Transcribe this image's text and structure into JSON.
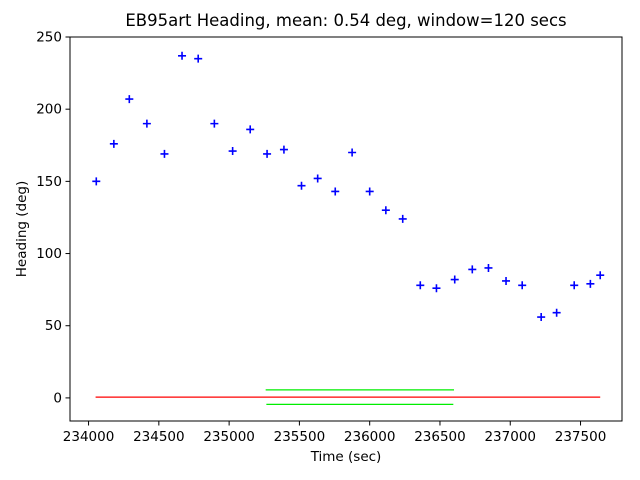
{
  "chart_data": {
    "type": "scatter",
    "title": "EB95art Heading, mean: 0.54 deg, window=120 secs",
    "xlabel": "Time (sec)",
    "ylabel": "Heading (deg)",
    "xlim": [
      233868,
      237795
    ],
    "ylim": [
      -16,
      250
    ],
    "xticks": [
      234000,
      234500,
      235000,
      235500,
      236000,
      236500,
      237000,
      237500
    ],
    "yticks": [
      0,
      50,
      100,
      150,
      200,
      250
    ],
    "grid": false,
    "legend": false,
    "marker": "plus",
    "marker_color": "#0000ff",
    "marker_half_size": 4,
    "marker_stroke_width": 1.6,
    "points": [
      [
        234055,
        150
      ],
      [
        234180,
        176
      ],
      [
        234290,
        207
      ],
      [
        234415,
        190
      ],
      [
        234540,
        169
      ],
      [
        234665,
        237
      ],
      [
        234780,
        235
      ],
      [
        234895,
        190
      ],
      [
        235025,
        171
      ],
      [
        235150,
        186
      ],
      [
        235270,
        169
      ],
      [
        235390,
        172
      ],
      [
        235515,
        147
      ],
      [
        235630,
        152
      ],
      [
        235755,
        143
      ],
      [
        235875,
        170
      ],
      [
        236000,
        143
      ],
      [
        236115,
        130
      ],
      [
        236235,
        124
      ],
      [
        236360,
        78
      ],
      [
        236475,
        76
      ],
      [
        236605,
        82
      ],
      [
        236730,
        89
      ],
      [
        236845,
        90
      ],
      [
        236970,
        81
      ],
      [
        237085,
        78
      ],
      [
        237220,
        56
      ],
      [
        237330,
        59
      ],
      [
        237455,
        78
      ],
      [
        237570,
        79
      ],
      [
        237640,
        85
      ]
    ],
    "lines": [
      {
        "name": "mean-line",
        "color": "#ff0000",
        "y": 0.54,
        "x_start": 234050,
        "x_end": 237640
      },
      {
        "name": "upper-threshold-line",
        "color": "#00ee00",
        "y": 5.54,
        "x_start": 235260,
        "x_end": 236600
      },
      {
        "name": "lower-threshold-line",
        "color": "#00ee00",
        "y": -4.46,
        "x_start": 235265,
        "x_end": 236595
      }
    ],
    "mean_deg": "0.54",
    "window_secs": "120",
    "station": "EB95art"
  }
}
